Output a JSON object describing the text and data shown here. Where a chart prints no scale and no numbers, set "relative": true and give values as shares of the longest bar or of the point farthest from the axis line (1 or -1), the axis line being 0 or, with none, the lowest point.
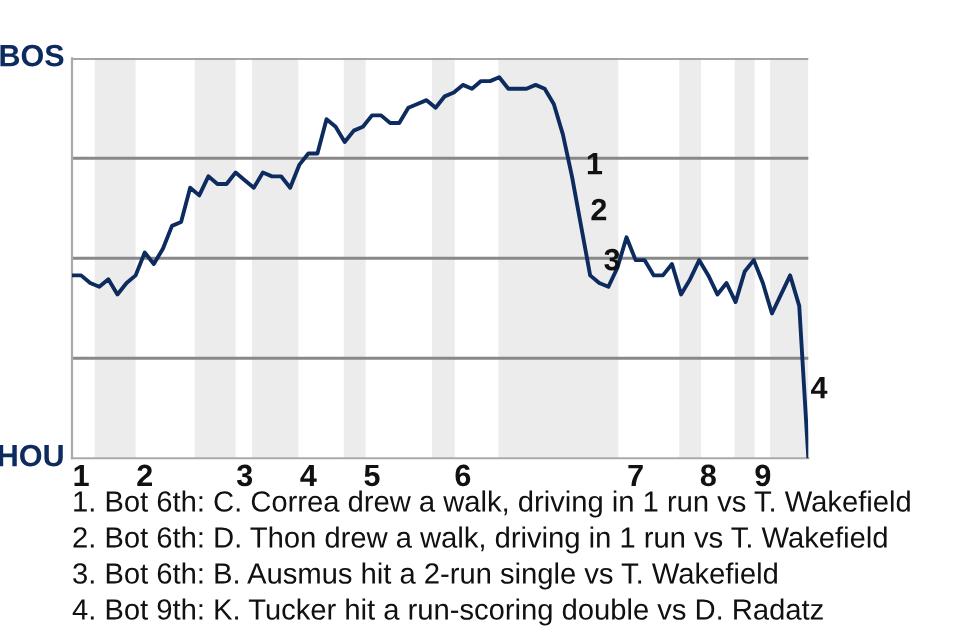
{
  "chart_data": {
    "type": "line",
    "relative": true,
    "categories": [
      null,
      "1",
      null,
      null,
      null,
      null,
      null,
      null,
      "2",
      null,
      null,
      null,
      null,
      null,
      null,
      null,
      null,
      null,
      null,
      "3",
      null,
      null,
      null,
      null,
      null,
      null,
      "4",
      null,
      null,
      null,
      null,
      null,
      null,
      "5",
      null,
      null,
      null,
      null,
      null,
      null,
      null,
      null,
      null,
      "6",
      null,
      null,
      null,
      null,
      null,
      null,
      null,
      null,
      null,
      null,
      null,
      null,
      null,
      null,
      null,
      null,
      null,
      null,
      "7",
      null,
      null,
      null,
      null,
      null,
      null,
      null,
      "8",
      null,
      null,
      null,
      null,
      null,
      "9",
      null,
      null,
      null,
      null,
      null
    ],
    "series": [
      {
        "color": "#0d2b5e",
        "values": [
          0.48,
          0.48,
          0.46,
          0.45,
          0.47,
          0.43,
          0.46,
          0.48,
          0.54,
          0.51,
          0.55,
          0.61,
          0.62,
          0.71,
          0.69,
          0.74,
          0.72,
          0.72,
          0.75,
          0.73,
          0.71,
          0.75,
          0.74,
          0.74,
          0.71,
          0.77,
          0.8,
          0.8,
          0.89,
          0.87,
          0.83,
          0.86,
          0.87,
          0.9,
          0.9,
          0.88,
          0.88,
          0.92,
          0.93,
          0.94,
          0.92,
          0.95,
          0.96,
          0.98,
          0.97,
          0.99,
          0.99,
          1,
          0.97,
          0.97,
          0.97,
          0.98,
          0.97,
          0.93,
          0.85,
          0.74,
          0.61,
          0.48,
          0.46,
          0.45,
          0.5,
          0.58,
          0.52,
          0.52,
          0.48,
          0.48,
          0.51,
          0.43,
          0.47,
          0.52,
          0.48,
          0.43,
          0.46,
          0.41,
          0.49,
          0.52,
          0.46,
          0.38,
          0.43,
          0.48,
          0.4,
          0
        ]
      }
    ],
    "grid": "y",
    "annotations": [
      "BOS",
      "HOU",
      "1",
      "2",
      "3",
      "4",
      "1. Bot 6th: C. Correa drew a walk, driving in 1 run vs T. Wakefield",
      "2. Bot 6th: D. Thon drew a walk, driving in 1 run vs T. Wakefield",
      "3. Bot 6th: B. Ausmus hit a 2-run single vs T. Wakefield",
      "4. Bot 9th: K. Tucker hit a run-scoring double vs D. Radatz"
    ],
    "marker": "none",
    "line_style": "solid"
  }
}
